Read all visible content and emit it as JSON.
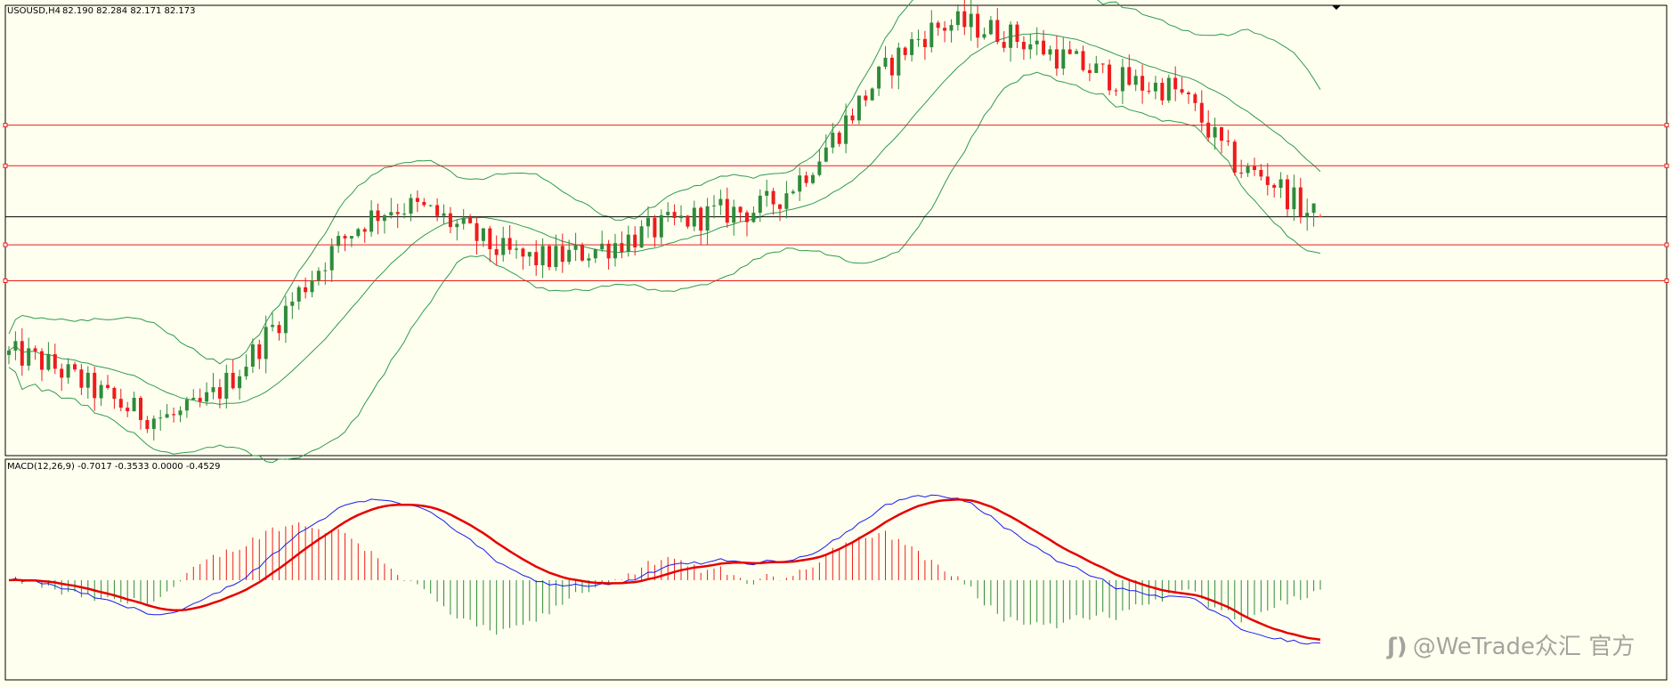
{
  "header": {
    "symbol_label": "USOUSD,H4",
    "ohlc_label": "82.190 82.284 82.171 82.173"
  },
  "macd_header": {
    "label": "MACD(12,26,9) -0.7017 -0.3533 0.0000 -0.4529"
  },
  "watermark": {
    "logo": "ʃ)",
    "text": "@WeTrade众汇 官方"
  },
  "colors": {
    "background": "#fffff0",
    "bull_candle": "#2e8b3a",
    "bear_candle": "#ee1c1c",
    "bollinger": "#2e9b4e",
    "level_line": "#ee1c1c",
    "current_price_line": "#000000",
    "macd_line": "#1a1aee",
    "signal_line": "#e60000",
    "hist_positive": "#ee1c1c",
    "hist_negative": "#2e8b3a"
  },
  "chart_data": [
    {
      "type": "candlestick",
      "symbol": "USOUSD",
      "timeframe": "H4",
      "last_bar": {
        "open": 82.19,
        "high": 82.284,
        "low": 82.171,
        "close": 82.173
      },
      "price_range": [
        72.2,
        91.0
      ],
      "price_anchors": {
        "start": 76.4,
        "dip1": 73.8,
        "rise1": 82.6,
        "mid1": 80.4,
        "mid2": 82.4,
        "peak": 90.2,
        "plateau": 87.6,
        "drop": 82.17
      },
      "horizontal_levels": [
        86.0,
        84.3,
        81.0,
        79.5
      ],
      "current_price": 82.173,
      "indicators": [
        "Bollinger Bands"
      ],
      "grid": false
    },
    {
      "type": "line",
      "name": "MACD",
      "params": "12,26,9",
      "values": {
        "macd_a": -0.7017,
        "macd_b": -0.3533,
        "zero": 0.0,
        "signal": -0.4529
      },
      "components": [
        "histogram",
        "macd_line",
        "signal_line"
      ],
      "grid": false
    }
  ]
}
